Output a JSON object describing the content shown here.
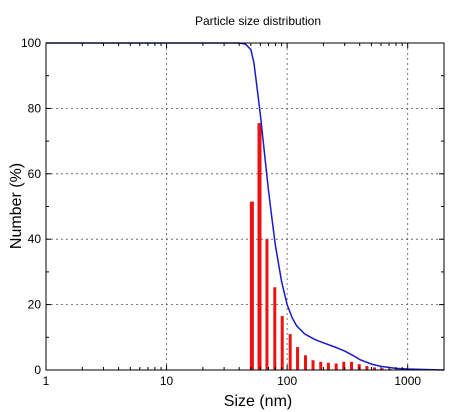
{
  "chart_data": {
    "type": "bar",
    "title": "Particle size distribution",
    "xlabel": "Size (nm)",
    "ylabel": "Number (%)",
    "x_scale": "log",
    "xlim": [
      1,
      2000
    ],
    "ylim": [
      0,
      100
    ],
    "grid": true,
    "x_ticks": [
      1,
      10,
      100,
      1000
    ],
    "y_ticks": [
      0,
      20,
      40,
      60,
      80,
      100
    ],
    "series": [
      {
        "type": "bar",
        "color": "#ee1111",
        "x": [
          51,
          59,
          68,
          79,
          91,
          106,
          122,
          142,
          164,
          190,
          220,
          255,
          295,
          342,
          396,
          459,
          531,
          615,
          712,
          825,
          955
        ],
        "y": [
          51.5,
          75.5,
          40.0,
          25.3,
          16.5,
          11.0,
          7.0,
          4.5,
          3.0,
          2.5,
          2.2,
          2.0,
          2.5,
          2.5,
          1.8,
          1.2,
          0.8,
          0.5,
          0.3,
          0.2,
          0.1
        ]
      },
      {
        "type": "line",
        "color": "#1a1acc",
        "x": [
          1,
          10,
          40,
          45,
          50,
          53,
          56,
          60,
          65,
          70,
          75,
          80,
          90,
          100,
          110,
          120,
          140,
          170,
          200,
          250,
          300,
          350,
          400,
          500,
          600,
          800,
          1000,
          1500,
          2000
        ],
        "y": [
          100,
          100,
          100,
          99.7,
          98,
          94,
          87,
          78,
          66,
          55,
          46,
          38,
          27,
          20,
          16,
          13.5,
          11,
          9.3,
          8.3,
          7,
          5.8,
          4.5,
          3.2,
          1.8,
          1.1,
          0.5,
          0.3,
          0.1,
          0
        ]
      }
    ]
  }
}
